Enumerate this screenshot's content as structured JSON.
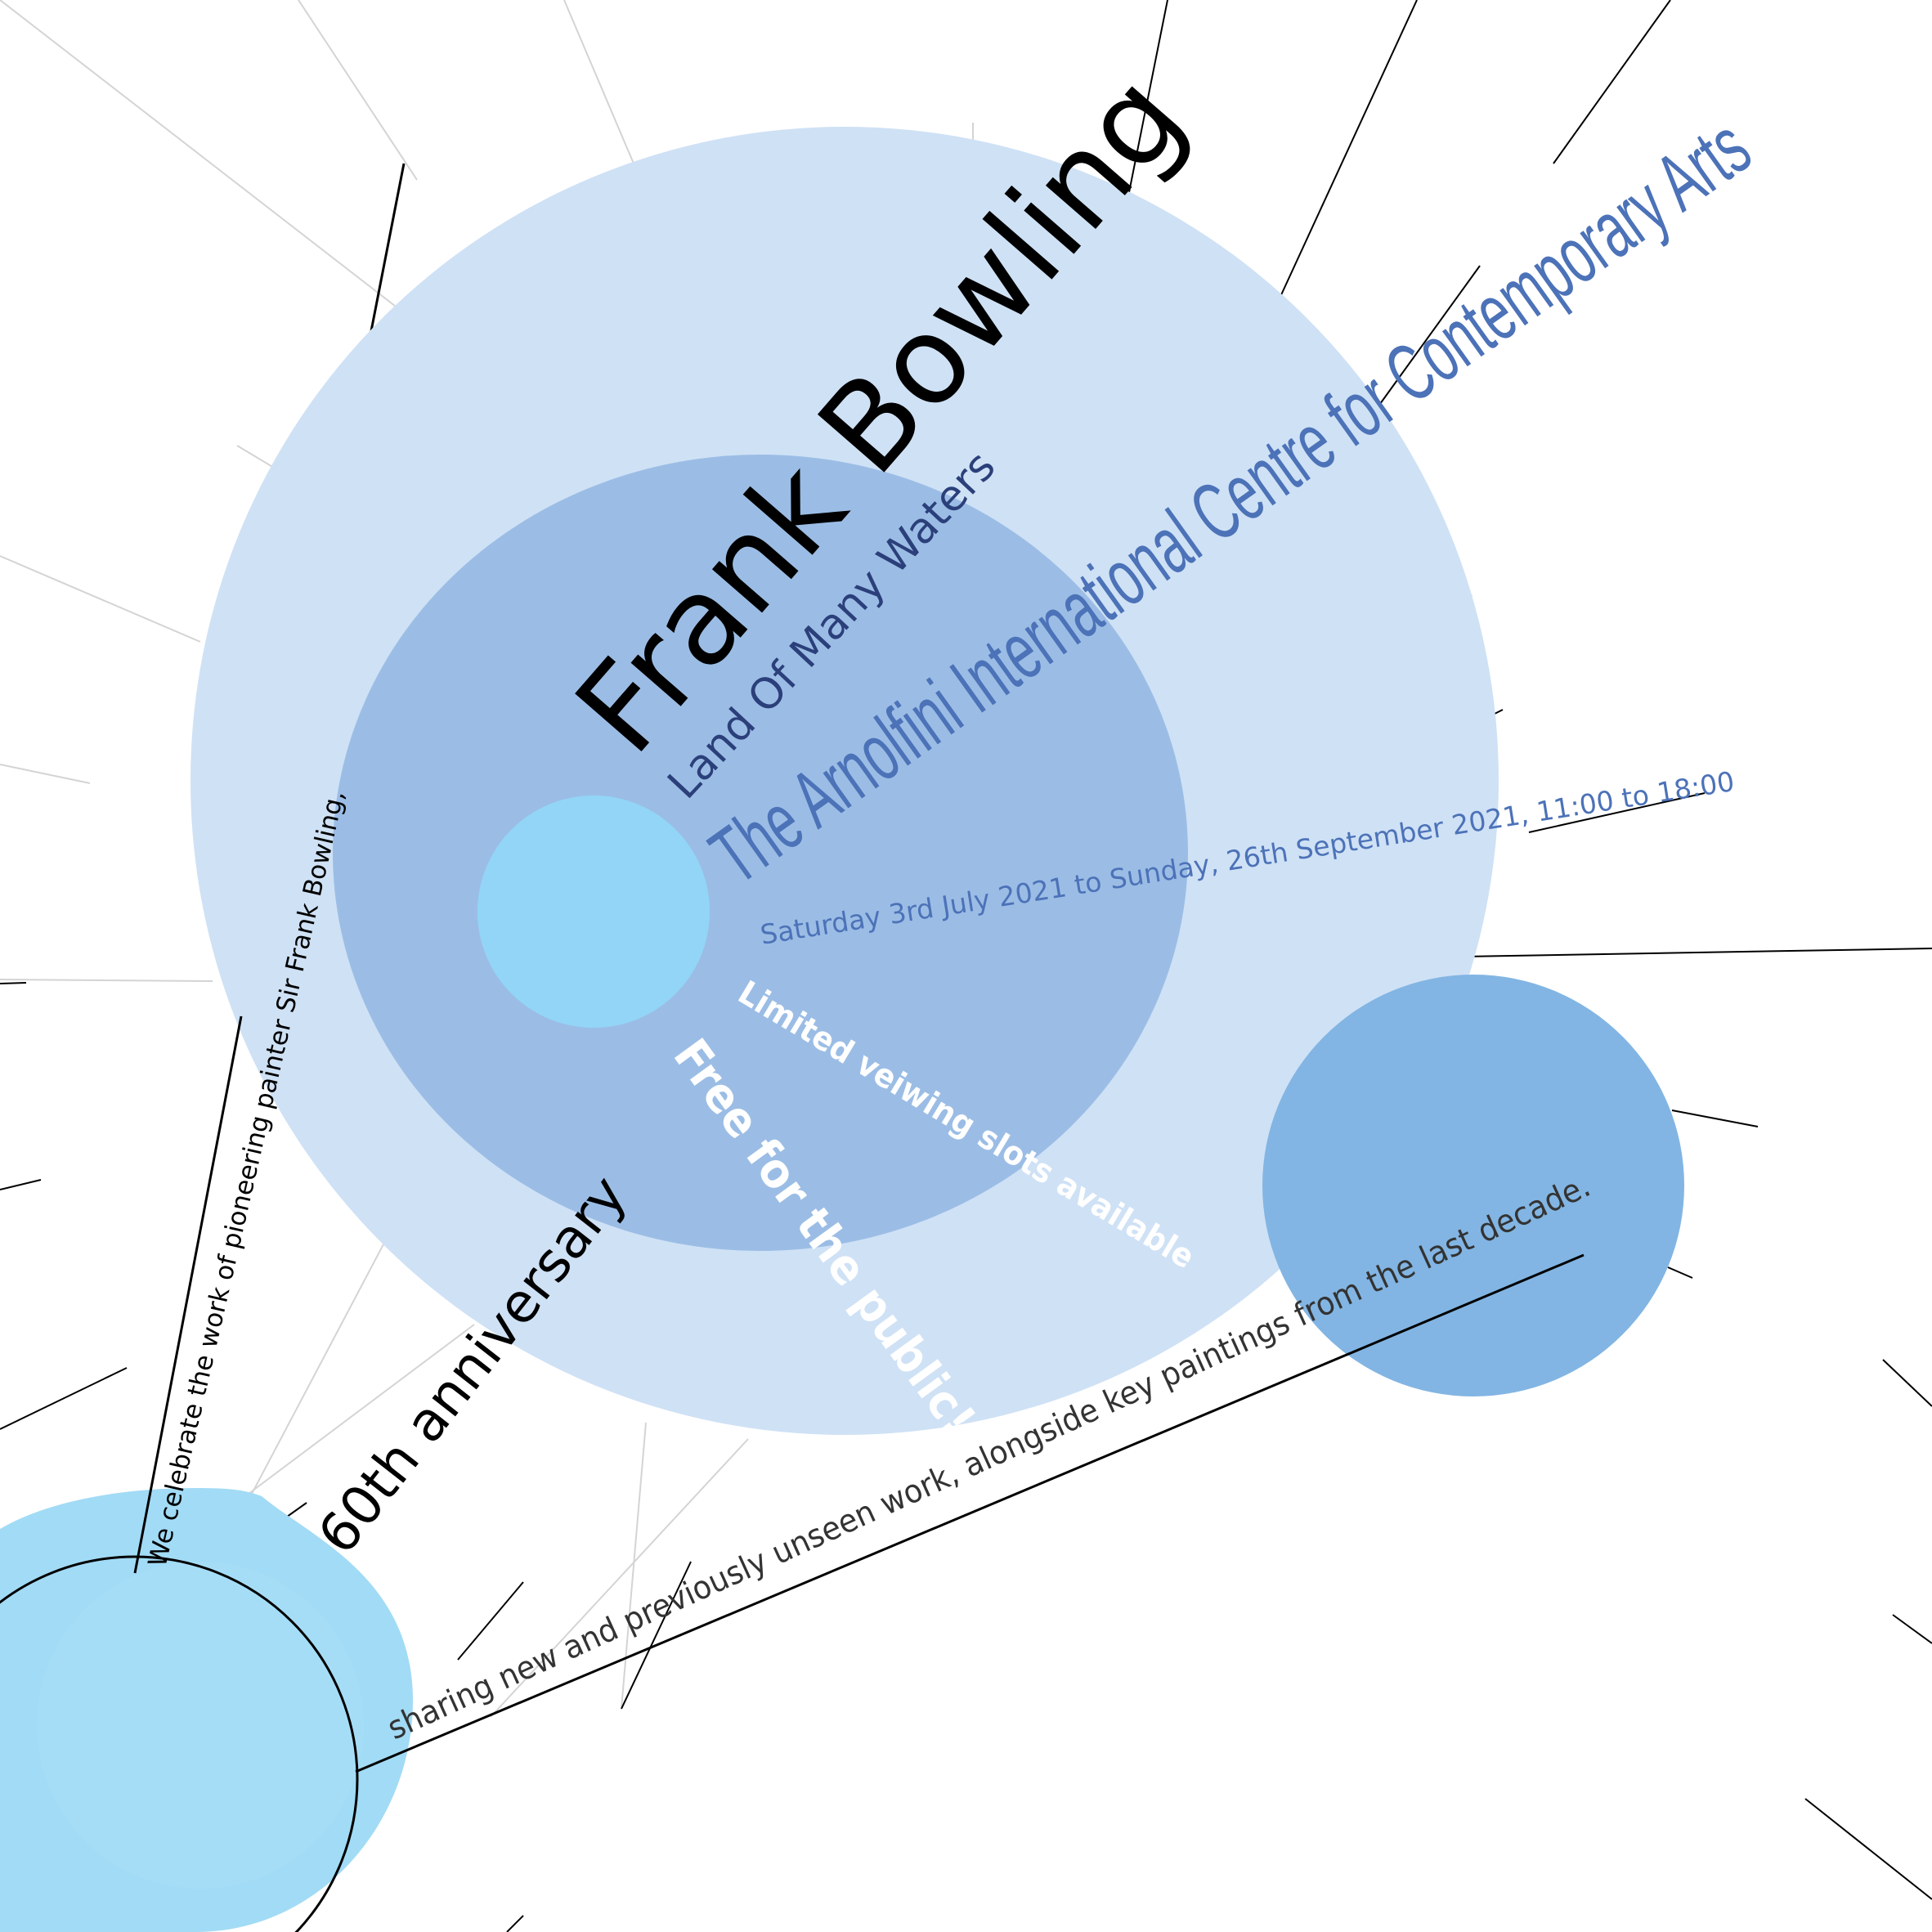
{
  "poster": {
    "artist": "Frank Bowling",
    "exhibition_title": "Land Of Many Waters",
    "venue": "The Arnolfini International Centre for Contemporary Arts",
    "dates": "Saturday 3rd July 2021 to Sunday, 26th September 2021, 11:00 to 18:00",
    "slots": "Limited veiwing slots available",
    "free": "Free for the public!",
    "anniversary": "60th anniversary",
    "celebrate": "We celebrate the work of pioneering painter  Sir Frank Bowling,",
    "sharing": "sharing new and previously unseen work, alongside key paintings from the last decade."
  },
  "colors": {
    "outer_circle": "#cfe1f5",
    "middle_circle": "#9bbde5",
    "small_cyan_circle": "#92d5f7",
    "right_circle": "#82b5e3",
    "bottom_left_circle": "#a2dbf5",
    "venue_text": "#4c72b8",
    "dates_text": "#4c72b8",
    "title_text": "#000000",
    "subtitle_text": "#2b3f7a",
    "white_text": "#ffffff"
  }
}
